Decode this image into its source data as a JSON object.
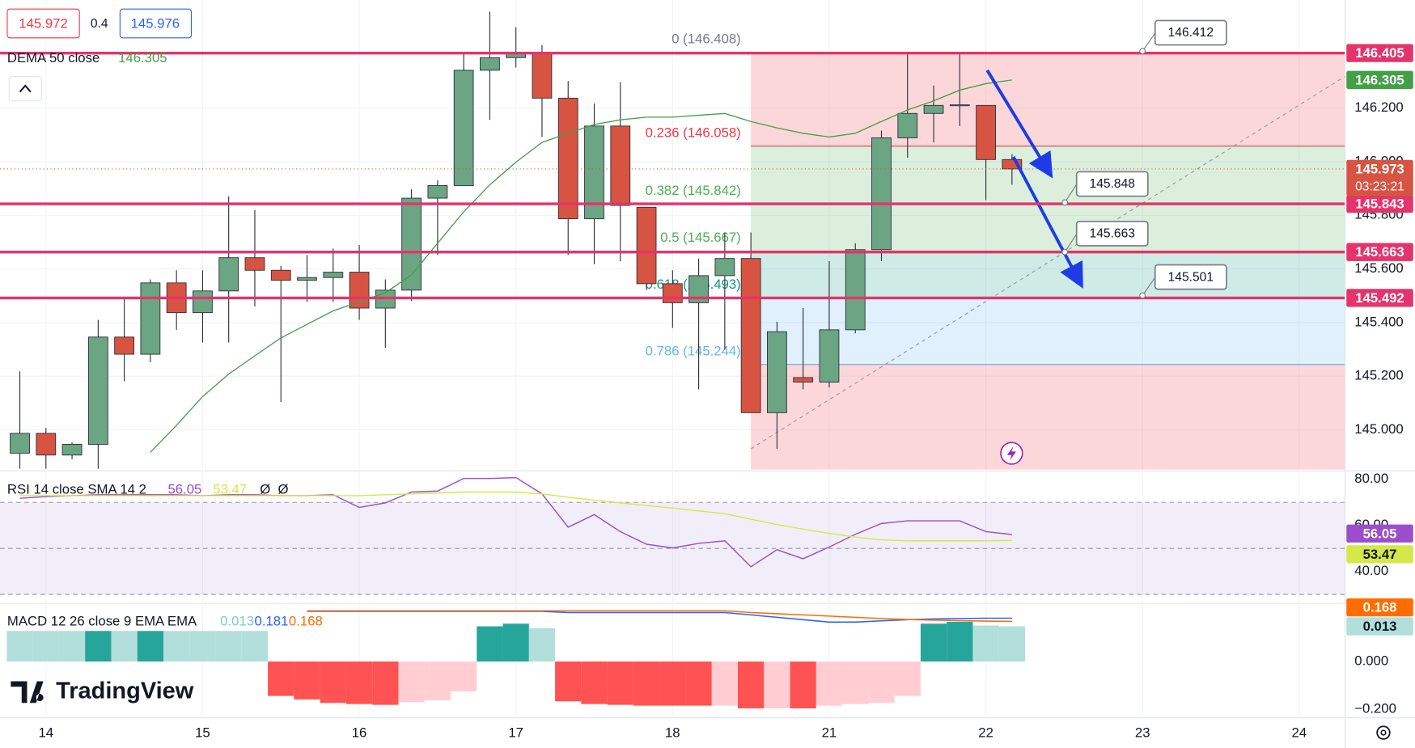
{
  "quote": {
    "bid": "145.972",
    "spread": "0.4",
    "ask": "145.976"
  },
  "brand": "TradingView",
  "chart_data": [
    {
      "type": "candlestick",
      "xlim": [
        -0.76,
        50.74
      ],
      "xticks": [
        {
          "value": 1,
          "label": "14"
        },
        {
          "value": 7,
          "label": "15"
        },
        {
          "value": 13,
          "label": "16"
        },
        {
          "value": 19,
          "label": "17"
        },
        {
          "value": 25,
          "label": "18"
        },
        {
          "value": 31,
          "label": "21"
        },
        {
          "value": 37,
          "label": "22"
        },
        {
          "value": 43,
          "label": "23"
        },
        {
          "value": 49,
          "label": "24"
        }
      ],
      "ylim": [
        144.852,
        146.603
      ],
      "yticks": [
        {
          "value": 145,
          "label": "145.000"
        },
        {
          "value": 145.2,
          "label": "145.200"
        },
        {
          "value": 145.4,
          "label": "145.400"
        },
        {
          "value": 145.6,
          "label": "145.600"
        },
        {
          "value": 145.8,
          "label": "145.800"
        },
        {
          "value": 146,
          "label": "146.000"
        },
        {
          "value": 146.2,
          "label": "146.200"
        }
      ],
      "grid": true,
      "up_color": "#6ba583",
      "down_color": "#d75442",
      "open": [
        144.913,
        144.987,
        144.906,
        144.946,
        145.346,
        145.282,
        145.548,
        145.437,
        145.518,
        145.642,
        145.595,
        145.558,
        145.568,
        145.588,
        145.454,
        145.521,
        145.864,
        145.911,
        146.341,
        146.388,
        146.408,
        146.237,
        145.787,
        146.133,
        145.83,
        145.545,
        145.474,
        145.575,
        145.639,
        145.064,
        145.195,
        145.178,
        145.373,
        145.672,
        146.089,
        146.18,
        146.21,
        146.21,
        146.008
      ],
      "high": [
        145.218,
        145.007,
        144.953,
        145.41,
        145.494,
        145.561,
        145.595,
        145.595,
        145.871,
        145.82,
        145.612,
        145.652,
        145.676,
        145.689,
        145.561,
        145.897,
        145.931,
        146.402,
        146.56,
        146.502,
        146.435,
        146.301,
        146.217,
        146.297,
        145.83,
        145.595,
        145.639,
        145.736,
        145.736,
        145.403,
        145.454,
        145.629,
        145.696,
        146.116,
        146.402,
        146.284,
        146.402,
        146.21,
        146.028
      ],
      "low": [
        144.855,
        144.855,
        144.89,
        144.855,
        145.181,
        145.252,
        145.373,
        145.326,
        145.326,
        145.46,
        145.104,
        145.477,
        145.477,
        145.41,
        145.306,
        145.481,
        145.652,
        145.911,
        146.156,
        146.351,
        146.092,
        145.652,
        145.618,
        145.629,
        145.521,
        145.38,
        145.151,
        145.299,
        145.064,
        144.929,
        145.151,
        145.158,
        145.36,
        145.629,
        146.015,
        146.072,
        146.133,
        145.857,
        145.914
      ],
      "close": [
        144.987,
        144.906,
        144.946,
        145.346,
        145.282,
        145.548,
        145.437,
        145.518,
        145.642,
        145.595,
        145.558,
        145.568,
        145.588,
        145.454,
        145.521,
        145.864,
        145.911,
        146.341,
        146.388,
        146.405,
        146.237,
        145.787,
        146.133,
        145.837,
        145.545,
        145.474,
        145.575,
        145.639,
        145.064,
        145.366,
        145.178,
        145.373,
        145.672,
        146.089,
        146.18,
        146.21,
        146.212,
        146.008,
        145.973
      ],
      "countdown": "03:23:21",
      "series": [
        {
          "name": "DEMA 50 close",
          "color": "#43a047",
          "values": [
            null,
            null,
            null,
            null,
            null,
            144.916,
            145.017,
            145.124,
            145.208,
            145.276,
            145.343,
            145.393,
            145.444,
            145.477,
            145.511,
            145.578,
            145.696,
            145.813,
            145.914,
            145.998,
            146.072,
            146.106,
            146.139,
            146.156,
            146.166,
            146.166,
            146.173,
            146.18,
            146.15,
            146.126,
            146.106,
            146.092,
            146.106,
            146.15,
            146.193,
            146.227,
            146.267,
            146.291,
            146.305
          ]
        }
      ],
      "levels": [
        146.405,
        145.843,
        145.663,
        145.492
      ],
      "level_color": "#e5336b",
      "fib_levels": [
        {
          "label": "0 (146.408)",
          "price": 146.408,
          "color": "#787b86"
        },
        {
          "label": "0.236 (146.058)",
          "price": 146.058,
          "color": "#f23645"
        },
        {
          "label": "0.382 (145.842)",
          "price": 145.842,
          "color": "#4caf50"
        },
        {
          "label": "0.5 (145.667)",
          "price": 145.667,
          "color": "#4caf50"
        },
        {
          "label": "0.618 (145.493)",
          "price": 145.493,
          "color": "#089981"
        },
        {
          "label": "0.786 (145.244)",
          "price": 145.244,
          "color": "#64b5f6"
        }
      ],
      "fib_bottom_color": "#f23645",
      "callouts": [
        146.412,
        145.848,
        145.663,
        145.501
      ]
    },
    {
      "type": "line",
      "title": "RSI 14 close SMA 14 2",
      "ylim": [
        26.7,
        83.1
      ],
      "yticks": [
        {
          "value": 40,
          "label": "40.00"
        },
        {
          "value": 60,
          "label": "60.00"
        },
        {
          "value": 80,
          "label": "80.00"
        }
      ],
      "hlines": [
        70,
        50,
        30
      ],
      "band_color": "#7e57c2",
      "series": [
        {
          "color": "#9c4dcc",
          "values": [
            71.8,
            72.5,
            72.9,
            73.3,
            73.3,
            73.3,
            73.3,
            72.9,
            73.3,
            73.3,
            72.9,
            72.9,
            73.3,
            67.8,
            69.8,
            74.5,
            74.9,
            80.4,
            80.4,
            80.8,
            73.7,
            59.2,
            64.7,
            57.3,
            51.8,
            50.2,
            52.2,
            53.3,
            42.0,
            49.4,
            45.5,
            50.6,
            56.1,
            60.8,
            62.0,
            62.0,
            62.0,
            57.3,
            56.05
          ]
        },
        {
          "color": "#d4e84a",
          "values": [
            72.9,
            72.9,
            72.9,
            72.9,
            72.9,
            72.9,
            72.9,
            72.9,
            72.9,
            72.9,
            72.9,
            72.9,
            72.9,
            72.9,
            73.3,
            73.7,
            74.1,
            74.5,
            74.5,
            74.5,
            73.7,
            72.2,
            71.0,
            69.8,
            68.6,
            67.5,
            66.3,
            65.1,
            62.7,
            60.4,
            58.4,
            56.5,
            54.9,
            53.7,
            53.3,
            53.3,
            53.3,
            53.3,
            53.47
          ]
        }
      ],
      "markers": [
        "Ø",
        "Ø"
      ]
    },
    {
      "type": "combo",
      "title": "MACD 12 26 close 9 EMA EMA",
      "ylim": [
        -0.2302,
        0.2377
      ],
      "y2lim": [
        -0.0203,
        0.021
      ],
      "yticks": [
        {
          "value": 0,
          "label": "0.000"
        },
        {
          "value": -0.2,
          "label": "−0.200"
        }
      ],
      "series": [
        {
          "kind": "bar",
          "axis": "y2",
          "colors": [
            "#b2dfdb",
            "#b2dfdb",
            "#b2dfdb",
            "#26a69a",
            "#b2dfdb",
            "#26a69a",
            "#b2dfdb",
            "#b2dfdb",
            "#b2dfdb",
            "#b2dfdb",
            "#ff5252",
            "#ff5252",
            "#ff5252",
            "#ff5252",
            "#ff5252",
            "#ffcdd2",
            "#ffcdd2",
            "#ffcdd2",
            "#26a69a",
            "#26a69a",
            "#b2dfdb",
            "#ff5252",
            "#ff5252",
            "#ff5252",
            "#ff5252",
            "#ff5252",
            "#ff5252",
            "#ffcdd2",
            "#ff5252",
            "#ffcdd2",
            "#ff5252",
            "#ffcdd2",
            "#ffcdd2",
            "#ffcdd2",
            "#ffcdd2",
            "#26a69a",
            "#26a69a",
            "#b2dfdb",
            "#b2dfdb"
          ],
          "values": [
            0.0113,
            0.0113,
            0.0113,
            0.0113,
            0.0113,
            0.0113,
            0.0113,
            0.0113,
            0.0113,
            0.0113,
            -0.0127,
            -0.014,
            -0.0153,
            -0.0157,
            -0.016,
            -0.015,
            -0.0143,
            -0.011,
            0.013,
            0.014,
            0.0123,
            -0.0147,
            -0.0157,
            -0.016,
            -0.0163,
            -0.0163,
            -0.0163,
            -0.0163,
            -0.0173,
            -0.0173,
            -0.0173,
            -0.0163,
            -0.0157,
            -0.0153,
            -0.0127,
            0.014,
            0.0147,
            0.0133,
            0.013
          ]
        },
        {
          "color": "#2962ff",
          "values": [
            null,
            null,
            null,
            null,
            null,
            null,
            null,
            null,
            null,
            null,
            null,
            0.21,
            0.21,
            0.21,
            0.21,
            0.21,
            0.21,
            0.21,
            0.21,
            0.21,
            0.21,
            0.205,
            0.205,
            0.205,
            0.205,
            0.205,
            0.205,
            0.205,
            0.195,
            0.185,
            0.175,
            0.165,
            0.165,
            0.17,
            0.175,
            0.178,
            0.18,
            0.181,
            0.181
          ]
        },
        {
          "color": "#ff6d00",
          "values": [
            null,
            null,
            null,
            null,
            null,
            null,
            null,
            null,
            null,
            null,
            null,
            0.212,
            0.212,
            0.212,
            0.212,
            0.212,
            0.212,
            0.212,
            0.212,
            0.212,
            0.212,
            0.212,
            0.212,
            0.212,
            0.212,
            0.212,
            0.212,
            0.212,
            0.205,
            0.2,
            0.195,
            0.19,
            0.185,
            0.18,
            0.176,
            0.173,
            0.171,
            0.169,
            0.168
          ]
        }
      ]
    }
  ]
}
